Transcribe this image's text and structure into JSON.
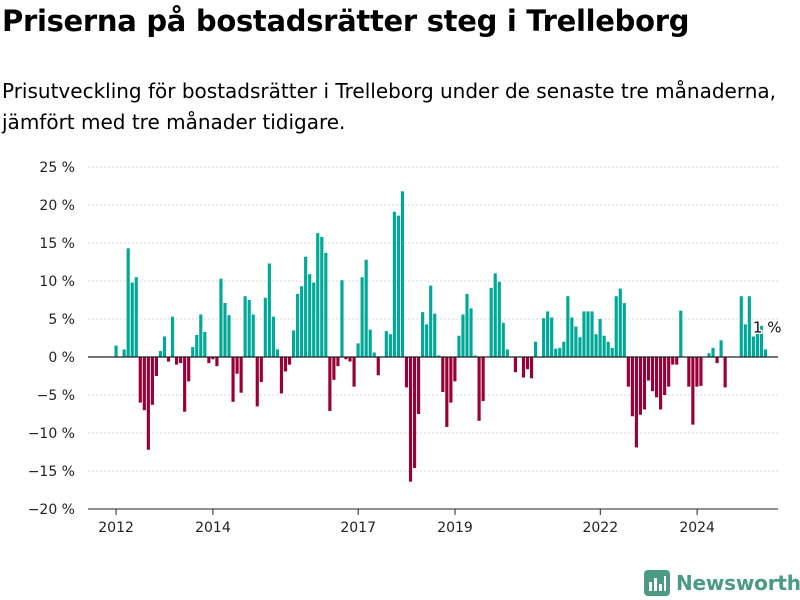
{
  "title": "Priserna på bostadsrätter steg i Trelleborg",
  "subtitle": "Prisutveckling för bostadsrätter i Trelleborg under de senaste tre månaderna, jämfört med tre månader tidigare.",
  "brand": "Newsworthy",
  "colors": {
    "positive": "#00a898",
    "negative": "#9a0038",
    "axis": "#222222",
    "grid": "#d8d8d8",
    "brand": "#4a9a84"
  },
  "chart_data": {
    "type": "bar",
    "title": "Priserna på bostadsrätter steg i Trelleborg",
    "xlabel": "",
    "ylabel": "",
    "ylim": [
      -20,
      25
    ],
    "yticks": [
      -20,
      -15,
      -10,
      -5,
      0,
      5,
      10,
      15,
      20,
      25
    ],
    "ytick_labels": [
      "−20 %",
      "−15 %",
      "−10 %",
      "−5 %",
      "0 %",
      "5 %",
      "10 %",
      "15 %",
      "20 %",
      "25 %"
    ],
    "xticks": [
      {
        "x": 2012.0,
        "label": "2012"
      },
      {
        "x": 2014.0,
        "label": "2014"
      },
      {
        "x": 2017.0,
        "label": "2017"
      },
      {
        "x": 2019.0,
        "label": "2019"
      },
      {
        "x": 2022.0,
        "label": "2022"
      },
      {
        "x": 2024.0,
        "label": "2024"
      }
    ],
    "xlim": [
      2011.42,
      2025.67
    ],
    "grid": true,
    "start": 2012.0,
    "step": 0.0833,
    "values": [
      1.5,
      0,
      1.0,
      14.3,
      9.8,
      10.5,
      -6.0,
      -7.0,
      -12.2,
      -6.3,
      -2.5,
      0.8,
      2.7,
      -0.6,
      5.3,
      -1.0,
      -0.8,
      -7.2,
      -3.2,
      1.3,
      2.9,
      5.6,
      3.3,
      -0.8,
      -0.3,
      -1.2,
      10.3,
      7.1,
      5.5,
      -5.9,
      -2.2,
      -4.7,
      8.0,
      7.5,
      5.6,
      -6.5,
      -3.3,
      7.8,
      12.3,
      5.3,
      1.0,
      -4.8,
      -1.9,
      -1.0,
      3.5,
      8.3,
      9.3,
      13.2,
      10.9,
      9.8,
      16.3,
      15.8,
      13.7,
      -7.1,
      -3.0,
      -1.2,
      10.1,
      -0.3,
      -0.6,
      -3.9,
      1.8,
      10.5,
      12.8,
      3.6,
      0.6,
      -2.4,
      0.0,
      3.4,
      3.0,
      19.1,
      18.6,
      21.8,
      -4.0,
      -16.4,
      -14.6,
      -7.5,
      5.9,
      4.3,
      9.4,
      5.7,
      0.2,
      -4.6,
      -9.2,
      -6.0,
      -3.2,
      2.8,
      5.6,
      8.3,
      6.4,
      0.2,
      -8.4,
      -5.8,
      0.0,
      9.1,
      11.0,
      9.9,
      4.5,
      1.0,
      0.0,
      -2.0,
      0,
      -2.7,
      -1.6,
      -2.8,
      2.0,
      0,
      5.1,
      6.0,
      5.2,
      1.1,
      1.2,
      2.0,
      8.0,
      5.2,
      4.0,
      2.6,
      6.0,
      6.0,
      6.0,
      3.0,
      5.0,
      2.8,
      2.0,
      1.2,
      8.0,
      9.0,
      7.1,
      -3.9,
      -7.8,
      -11.9,
      -7.6,
      -6.9,
      -3.1,
      -4.5,
      -5.3,
      -6.9,
      -5.0,
      -3.9,
      -1.0,
      -1.0,
      6.1,
      0,
      -3.9,
      -8.9,
      -3.9,
      -3.8,
      0,
      0.5,
      1.2,
      -0.8,
      2.2,
      -4.0,
      0,
      0,
      0,
      8.0,
      4.3,
      8.0,
      2.7,
      3.1,
      4.1,
      1.0
    ],
    "annotations": [
      {
        "text": "1 %"
      }
    ]
  }
}
